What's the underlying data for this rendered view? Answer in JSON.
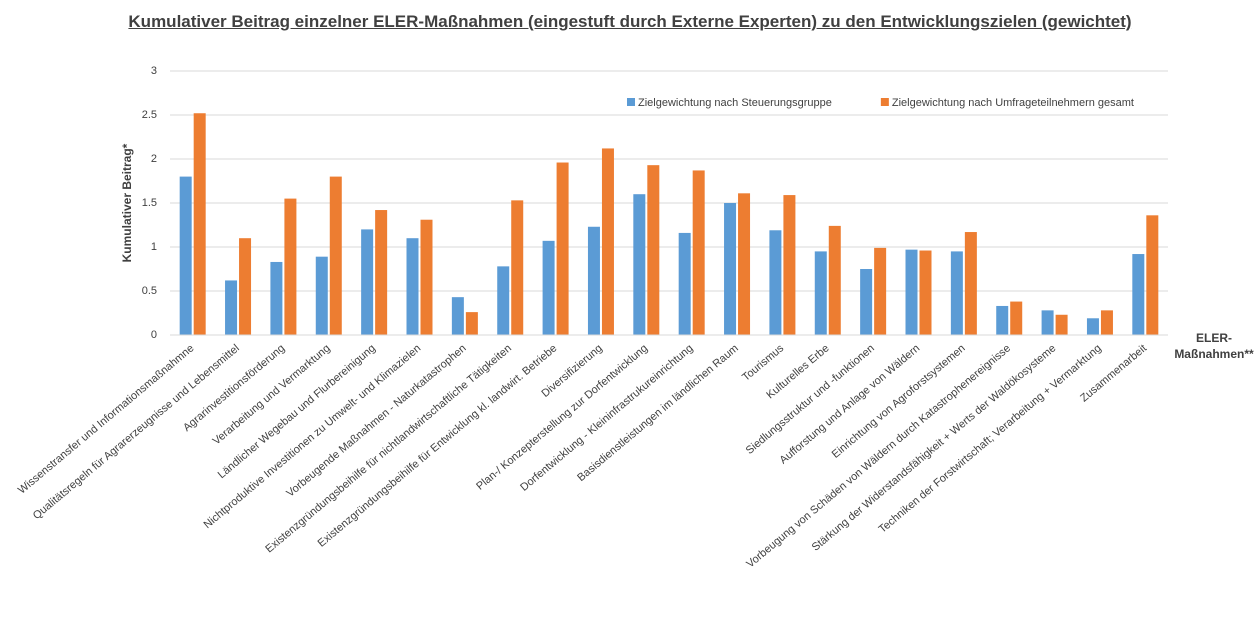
{
  "chart_data": {
    "type": "bar",
    "title": "Kumulativer Beitrag einzelner ELER-Maßnahmen (eingestuft durch Externe Experten) zu den Entwicklungszielen (gewichtet)",
    "y_label": "Kumulativer Beitrag*",
    "x_label": "ELER-Maßnahmen**",
    "categories": [
      "Wissenstransfer und Informationsmaßnahmne",
      "Qualitätsregeln für Agrarerzeugnisse und Lebensmittel",
      "Agrarinvestitionsförderung",
      "Verarbeitung und Vermarktung",
      "Ländlicher Wegebau und Flurbereinigung",
      "Nichtproduktive Investitionen zu Umwelt- und Klimazielen",
      "Vorbeugende Maßnahmen - Naturkatastrophen",
      "Existenzgründungsbeihilfe für nichtlandwirtschaftliche Tätigkeiten",
      "Existenzgründungsbeihilfe für Entwicklung kl. landwirt. Betriebe",
      "Diversifizierung",
      "Plan-/ Konzepterstellung zur Dorfentwicklung",
      "Dorfentwicklung - Kleininfrastrukureinrichtung",
      "Basisdienstleistungen im ländlichen Raum",
      "Tourismus",
      "Kulturelles Erbe",
      "Siedlungsstruktur und -funktionen",
      "Aufforstung und Anlage von Wäldern",
      "Einrichtung von Agroforstsystemen",
      "Vorbeugung von Schäden von Wäldern durch Katastrophenereignisse",
      "Stärkung der Widerstandsfähigkeit + Werts der Waldökosysteme",
      "Techniken der Forstwirtschaft; Verarbeitung + Vermarktung",
      "Zusammenarbeit"
    ],
    "series": [
      {
        "name": "Zielgewichtung nach Steuerungsgruppe",
        "color": "#5b9bd5",
        "values": [
          1.8,
          0.62,
          0.83,
          0.89,
          1.2,
          1.1,
          0.43,
          0.78,
          1.07,
          1.23,
          1.6,
          1.16,
          1.5,
          1.19,
          0.95,
          0.75,
          0.97,
          0.95,
          0.33,
          0.28,
          0.19,
          0.92
        ]
      },
      {
        "name": "Zielgewichtung nach Umfrageteilnehmern gesamt",
        "color": "#ed7d31",
        "values": [
          2.52,
          1.1,
          1.55,
          1.8,
          1.42,
          1.31,
          0.26,
          1.53,
          1.96,
          2.12,
          1.93,
          1.87,
          1.61,
          1.59,
          1.24,
          0.99,
          0.96,
          1.17,
          0.38,
          0.23,
          0.28,
          1.36
        ]
      }
    ],
    "ylim": [
      0,
      3
    ],
    "yticks": [
      0,
      0.5,
      1,
      1.5,
      2,
      2.5,
      3
    ],
    "grid": true,
    "legend": "top-right"
  }
}
